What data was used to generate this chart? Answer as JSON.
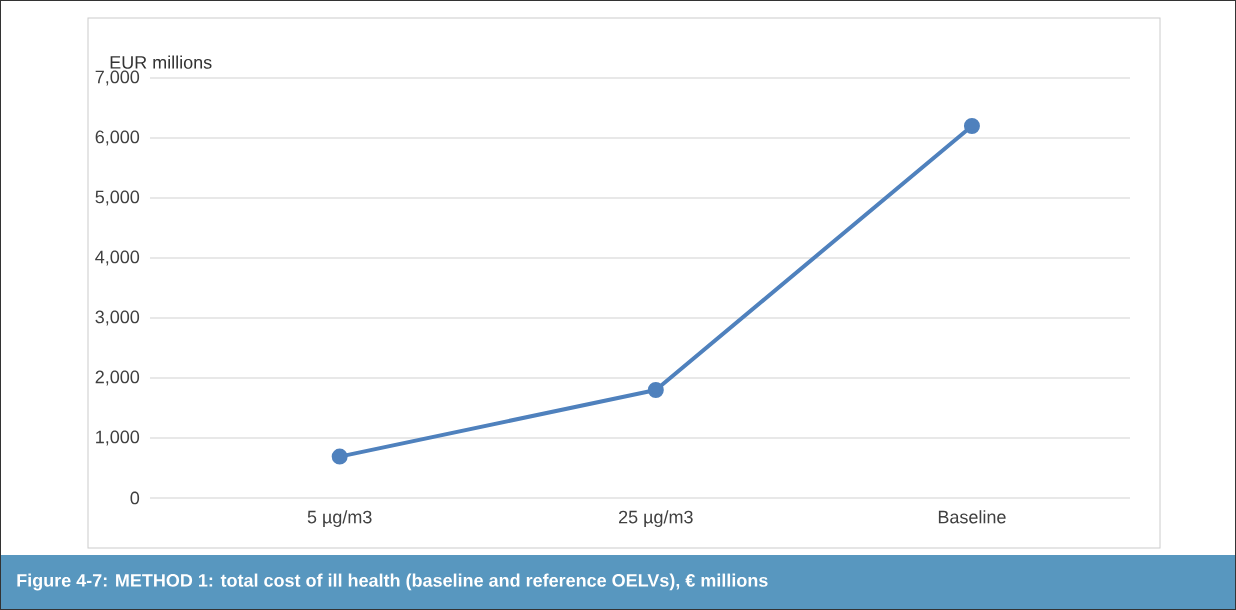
{
  "chart_data": {
    "type": "line",
    "title": "Figure 4-7:  METHOD 1: total cost of ill health (baseline and reference OELVs), € millions",
    "ylabel": "EUR millions",
    "categories": [
      "5 µg/m3",
      "25 µg/m3",
      "Baseline"
    ],
    "series": [
      {
        "color": "#4f81bd",
        "values": [
          690,
          1800,
          6200
        ]
      }
    ],
    "ylim": [
      0,
      7000
    ],
    "yticks": [
      0,
      {
        "value": 1000,
        "label": "1,000"
      },
      {
        "value": 2000,
        "label": "2,000"
      },
      {
        "value": 3000,
        "label": "3,000"
      },
      {
        "value": 4000,
        "label": "4,000"
      },
      {
        "value": 5000,
        "label": "5,000"
      },
      {
        "value": 6000,
        "label": "6,000"
      },
      {
        "value": 7000,
        "label": "7,000"
      }
    ],
    "grid": "y",
    "marker": "circle",
    "line_style": "solid"
  }
}
